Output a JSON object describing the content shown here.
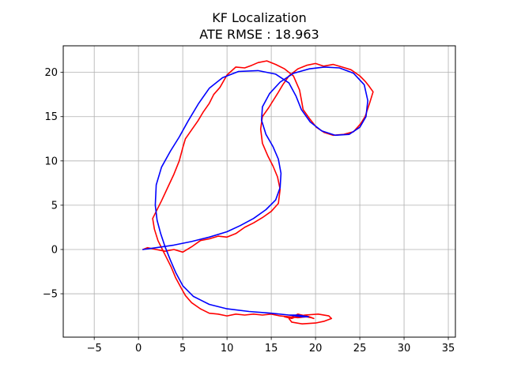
{
  "title": "KF Localization",
  "subtitle": "ATE RMSE : 18.963",
  "chart_data": {
    "type": "line",
    "title": "KF Localization",
    "subtitle": "ATE RMSE : 18.963",
    "xlabel": "",
    "ylabel": "",
    "xlim": [
      -8.5,
      35.8
    ],
    "ylim": [
      -9.9,
      23.0
    ],
    "xticks": [
      -5,
      0,
      5,
      10,
      15,
      20,
      25,
      30,
      35
    ],
    "yticks": [
      -5,
      0,
      5,
      10,
      15,
      20
    ],
    "xtick_labels": [
      "−5",
      "0",
      "5",
      "10",
      "15",
      "20",
      "25",
      "30",
      "35"
    ],
    "ytick_labels": [
      "−5",
      "0",
      "5",
      "10",
      "15",
      "20"
    ],
    "grid": true,
    "legend": "none",
    "series": [
      {
        "color": "#ff0000",
        "x": [
          0.5,
          1.0,
          2.0,
          3.0,
          4.0,
          5.0,
          6.0,
          7.0,
          8.0,
          9.0,
          10.0,
          11.0,
          12.0,
          13.0,
          14.0,
          15.0,
          15.8,
          16.0,
          15.7,
          15.2,
          14.6,
          14.0,
          13.8,
          14.0,
          14.7,
          15.2,
          15.7,
          16.3,
          17.0,
          18.0,
          19.0,
          20.0,
          20.9,
          22.0,
          23.0,
          24.0,
          25.0,
          25.6,
          26.0,
          26.5,
          26.1,
          25.6,
          25.1,
          24.3,
          23.2,
          22.0,
          21.0,
          20.1,
          19.3,
          18.6,
          18.4,
          18.2,
          17.5,
          16.5,
          15.5,
          14.5,
          13.5,
          12.8,
          12.0,
          11.0,
          10.0,
          9.2,
          8.5,
          8.0,
          7.3,
          6.7,
          6.0,
          5.3,
          5.0,
          4.6,
          4.0,
          3.3,
          2.6,
          2.0,
          1.6,
          1.8,
          2.2,
          2.7,
          3.2,
          3.7,
          4.2,
          4.8,
          5.3,
          6.0,
          7.0,
          8.0,
          9.0,
          10.0,
          11.0,
          12.0,
          13.0,
          14.0,
          15.0,
          16.0,
          17.0,
          18.0,
          19.0,
          19.5,
          19.8,
          19.3,
          18.0,
          17.0,
          17.3,
          18.5,
          20.0,
          21.0,
          21.8,
          21.5,
          20.3,
          18.8,
          17.8,
          17.3,
          16.5
        ],
        "y": [
          0.0,
          0.2,
          0.0,
          -0.2,
          0.0,
          -0.3,
          0.3,
          1.0,
          1.2,
          1.5,
          1.4,
          1.8,
          2.5,
          3.0,
          3.6,
          4.3,
          5.2,
          6.8,
          8.2,
          9.4,
          10.6,
          12.0,
          13.6,
          15.0,
          16.0,
          16.8,
          17.6,
          18.6,
          19.6,
          20.4,
          20.8,
          21.0,
          20.7,
          20.9,
          20.6,
          20.3,
          19.6,
          19.0,
          18.5,
          17.8,
          16.5,
          15.0,
          14.2,
          13.3,
          13.0,
          12.9,
          13.2,
          13.8,
          14.8,
          15.8,
          16.9,
          18.0,
          19.6,
          20.4,
          20.9,
          21.3,
          21.1,
          20.8,
          20.5,
          20.6,
          19.7,
          18.3,
          17.5,
          16.5,
          15.5,
          14.5,
          13.5,
          12.5,
          11.5,
          10.0,
          8.5,
          7.0,
          5.5,
          4.3,
          3.5,
          2.3,
          1.0,
          0.0,
          -1.0,
          -2.0,
          -3.2,
          -4.3,
          -5.2,
          -6.0,
          -6.7,
          -7.2,
          -7.3,
          -7.5,
          -7.3,
          -7.4,
          -7.3,
          -7.4,
          -7.3,
          -7.5,
          -7.6,
          -7.7,
          -7.6,
          -7.7,
          -7.8,
          -7.6,
          -7.3,
          -7.8,
          -8.2,
          -8.4,
          -8.3,
          -8.1,
          -7.8,
          -7.5,
          -7.3,
          -7.4,
          -7.6,
          -7.8,
          -7.6
        ]
      },
      {
        "color": "#0000ff",
        "x": [
          0.5,
          2.0,
          4.0,
          6.0,
          8.0,
          10.0,
          11.5,
          13.0,
          14.4,
          15.5,
          16.0,
          16.1,
          15.8,
          15.2,
          14.4,
          13.9,
          14.0,
          14.8,
          16.0,
          17.5,
          19.3,
          21.0,
          22.7,
          24.3,
          25.5,
          25.9,
          25.7,
          25.0,
          23.8,
          22.2,
          20.7,
          19.4,
          18.4,
          17.8,
          17.0,
          15.5,
          13.5,
          11.3,
          9.5,
          8.0,
          6.8,
          5.6,
          4.6,
          3.6,
          2.6,
          2.0,
          1.9,
          2.1,
          2.5,
          3.0,
          3.6,
          4.2,
          5.0,
          6.2,
          8.0,
          10.0,
          12.5,
          15.0,
          17.0,
          18.5,
          19.2,
          18.0,
          17.0
        ],
        "y": [
          0.0,
          0.2,
          0.5,
          0.9,
          1.4,
          2.0,
          2.7,
          3.5,
          4.5,
          5.6,
          7.0,
          8.6,
          10.2,
          11.6,
          13.0,
          14.6,
          16.1,
          17.6,
          18.9,
          19.9,
          20.4,
          20.6,
          20.5,
          19.9,
          18.6,
          16.8,
          15.0,
          13.8,
          13.0,
          12.9,
          13.4,
          14.4,
          15.8,
          17.3,
          18.8,
          19.8,
          20.2,
          20.1,
          19.4,
          18.2,
          16.5,
          14.5,
          12.7,
          11.1,
          9.3,
          7.3,
          5.0,
          3.3,
          1.8,
          0.3,
          -1.2,
          -2.6,
          -4.1,
          -5.3,
          -6.2,
          -6.7,
          -7.0,
          -7.2,
          -7.4,
          -7.6,
          -7.6,
          -7.4,
          -7.4
        ]
      }
    ]
  }
}
